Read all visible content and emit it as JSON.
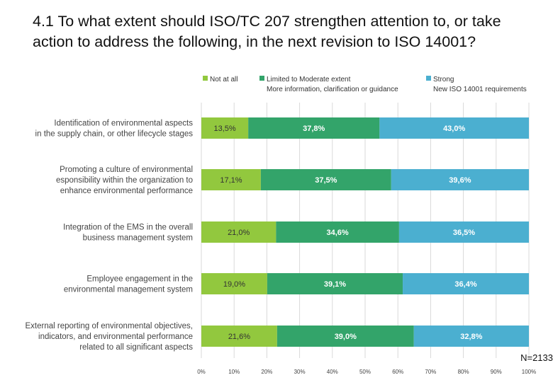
{
  "chart_data": {
    "type": "bar",
    "orientation": "horizontal",
    "stacked": true,
    "title": "4.1 To what extent should ISO/TC 207 strengthen attention to, or take action to address the following, in the next revision to ISO 14001?",
    "categories": [
      [
        "Identification of environmental aspects",
        "in the supply chain, or other lifecycle stages"
      ],
      [
        "Promoting a culture of environmental",
        "esponsibility within the organization to",
        "enhance environmental performance"
      ],
      [
        "Integration of the EMS in the overall",
        "business management system"
      ],
      [
        "Employee engagement in the",
        "environmental management system"
      ],
      [
        "External reporting of environmental objectives,",
        "indicators, and environmental performance",
        "related to all significant aspects"
      ]
    ],
    "series": [
      {
        "name": "Not at all",
        "subtitle": "",
        "color": "#92c83e",
        "label_color": "#333333",
        "values": [
          13.5,
          17.1,
          21.0,
          19.0,
          21.6
        ],
        "labels": [
          "13,5%",
          "17,1%",
          "21,0%",
          "19,0%",
          "21,6%"
        ]
      },
      {
        "name": "Limited to Moderate extent",
        "subtitle": "More  information, clarification or guidance",
        "color": "#33a46a",
        "label_color": "#ffffff",
        "values": [
          37.8,
          37.5,
          34.6,
          39.1,
          39.0
        ],
        "labels": [
          "37,8%",
          "37,5%",
          "34,6%",
          "39,1%",
          "39,0%"
        ]
      },
      {
        "name": "Strong",
        "subtitle": "New ISO 14001 requirements",
        "color": "#4bafd0",
        "label_color": "#ffffff",
        "values": [
          43.0,
          39.6,
          36.5,
          36.4,
          32.8
        ],
        "labels": [
          "43,0%",
          "39,6%",
          "36,5%",
          "36,4%",
          "32,8%"
        ]
      }
    ],
    "xlim": [
      0,
      100
    ],
    "xticks": [
      "0%",
      "10%",
      "20%",
      "30%",
      "40%",
      "50%",
      "60%",
      "70%",
      "80%",
      "90%",
      "100%"
    ],
    "grid": true,
    "legend_position": "top",
    "annotation": "N=2133"
  }
}
